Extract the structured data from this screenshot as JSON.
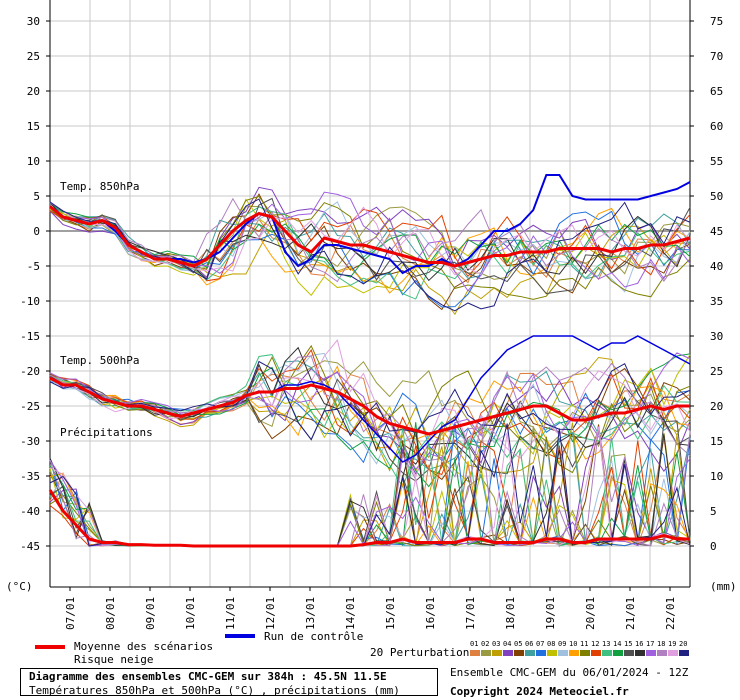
{
  "chart_data": {
    "type": "line",
    "title": "Diagramme des ensembles CMC-GEM sur 384h : 45.5N 11.5E",
    "subtitle": "Températures 850hPa et 500hPa (°C) , précipitations (mm)",
    "left_axis": {
      "unit": "(°C)",
      "ylim": [
        -50,
        32
      ],
      "ticks": [
        30,
        25,
        20,
        15,
        10,
        5,
        0,
        -5,
        -10,
        -15,
        -20,
        -25,
        -30,
        -35,
        -40,
        -45
      ]
    },
    "right_axis": {
      "unit": "(mm)",
      "ticks": [
        75,
        70,
        65,
        60,
        55,
        50,
        45,
        40,
        35,
        30,
        25,
        20,
        15,
        10,
        5,
        0
      ],
      "zero_at_left": -45,
      "scale_per_left_degree": 1
    },
    "x_ticks": [
      "07/01",
      "08/01",
      "09/01",
      "10/01",
      "11/01",
      "12/01",
      "13/01",
      "14/01",
      "15/01",
      "16/01",
      "17/01",
      "18/01",
      "19/01",
      "20/01",
      "21/01",
      "22/01"
    ],
    "section_labels": [
      "Temp. 850hPa",
      "Temp. 500hPa",
      "Précipitations"
    ],
    "t850_mean": [
      3.5,
      2,
      1.5,
      1,
      1.5,
      0.5,
      -2,
      -3,
      -4,
      -4,
      -4.5,
      -5,
      -4,
      -2,
      0,
      1.5,
      2.5,
      2,
      0,
      -2,
      -3,
      -1,
      -1.5,
      -2,
      -2,
      -2.5,
      -3,
      -3.5,
      -4,
      -4.5,
      -4.5,
      -5,
      -4.5,
      -4,
      -3.5,
      -3.5,
      -3,
      -3,
      -3,
      -2.5,
      -2.5,
      -2.5,
      -2.5,
      -3,
      -2.5,
      -2.5,
      -2,
      -2,
      -1.5,
      -1
    ],
    "t850_control": [
      3.5,
      2,
      1.5,
      1,
      1.5,
      0,
      -2,
      -3,
      -4,
      -4,
      -4,
      -4.5,
      -4,
      -3,
      -1,
      1,
      2.5,
      2,
      -3,
      -5,
      -4,
      -2,
      -2,
      -2.5,
      -3,
      -3.5,
      -4,
      -6,
      -5,
      -5,
      -4,
      -5,
      -4,
      -2,
      0,
      0,
      1,
      3,
      8,
      8,
      5,
      4.5,
      4.5,
      4.5,
      4.5,
      4.5,
      5,
      5.5,
      6,
      7
    ],
    "t500_mean": [
      -21,
      -22,
      -22,
      -23,
      -24,
      -24.5,
      -25,
      -25,
      -25.5,
      -26,
      -26.5,
      -26,
      -25.5,
      -25,
      -24.5,
      -23.5,
      -23,
      -23,
      -22.5,
      -22.5,
      -22,
      -22.5,
      -23,
      -24,
      -25,
      -26.5,
      -27.5,
      -28,
      -28.5,
      -29,
      -28.5,
      -28,
      -27.5,
      -27,
      -26.5,
      -26,
      -25.5,
      -25,
      -25,
      -26,
      -27,
      -27,
      -26.5,
      -26,
      -26,
      -25.5,
      -25,
      -25.5,
      -25,
      -25
    ],
    "t500_control": [
      -21,
      -22,
      -22,
      -23,
      -24,
      -24.5,
      -25,
      -25,
      -25.5,
      -26,
      -26.5,
      -26,
      -25.5,
      -25,
      -24.5,
      -23.5,
      -23,
      -23,
      -22,
      -22,
      -21.5,
      -22,
      -23,
      -25,
      -27,
      -29,
      -31,
      -33,
      -32,
      -30,
      -28,
      -27,
      -24,
      -21,
      -19,
      -17,
      -16,
      -15,
      -15,
      -15,
      -15,
      -16,
      -17,
      -16,
      -16,
      -15,
      -16,
      -17,
      -18,
      -19
    ],
    "precip_mean_mm": [
      8,
      5,
      3,
      1,
      0.5,
      0.5,
      0.2,
      0.2,
      0.1,
      0.1,
      0.1,
      0,
      0,
      0,
      0,
      0,
      0,
      0,
      0,
      0,
      0,
      0,
      0,
      0,
      0.2,
      0.5,
      0.5,
      1,
      0.5,
      0.5,
      0.5,
      0.5,
      1,
      1,
      0.5,
      0.5,
      0.5,
      0.5,
      1,
      1,
      0.5,
      0.5,
      1,
      1,
      1,
      1,
      1,
      1.5,
      1,
      1
    ],
    "legend": {
      "mean": "Moyenne des scénarios",
      "snow": "Risque neige",
      "control": "Run de contrôle",
      "perturbations": "20 Perturbations",
      "perturbation_ids": [
        "01",
        "02",
        "03",
        "04",
        "05",
        "06",
        "07",
        "08",
        "09",
        "10",
        "11",
        "12",
        "13",
        "14",
        "15",
        "16",
        "17",
        "18",
        "19",
        "20"
      ],
      "perturbation_colors": [
        "#e08040",
        "#9a9a40",
        "#c0a000",
        "#8040c0",
        "#804000",
        "#40a0a0",
        "#2070e0",
        "#c0c000",
        "#a0c0e0",
        "#ffa000",
        "#808000",
        "#e04000",
        "#40c080",
        "#10a040",
        "#505050",
        "#303030",
        "#a060e0",
        "#b080c0",
        "#e0a0e0",
        "#202080"
      ]
    },
    "series_colors": {
      "mean": "#ee0000",
      "control": "#0000e0"
    }
  },
  "footer": {
    "title": "Diagramme des ensembles CMC-GEM sur 384h : 45.5N 11.5E",
    "subtitle": "Températures 850hPa et 500hPa (°C) , précipitations (mm)",
    "run_info": "Ensemble CMC-GEM du 06/01/2024 - 12Z",
    "copyright": "Copyright 2024 Meteociel.fr"
  }
}
